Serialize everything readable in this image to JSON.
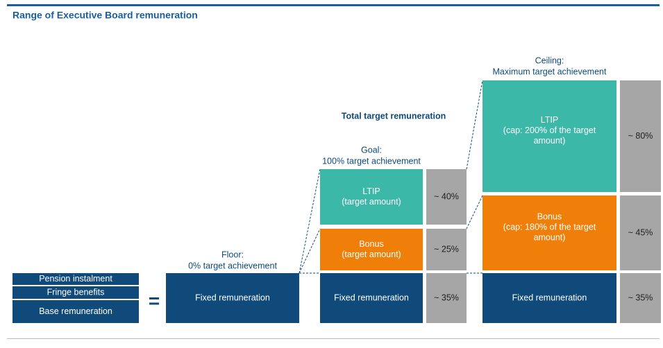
{
  "title": "Range of Executive Board remuneration",
  "components": [
    "Pension instalment",
    "Fringe benefits",
    "Base remuneration"
  ],
  "equals": "=",
  "total_target_label": "Total target remuneration",
  "scenarios": [
    {
      "heading": [
        "Floor:",
        "0% target achievement"
      ],
      "blocks": [
        {
          "label": [
            "Fixed remuneration"
          ]
        }
      ]
    },
    {
      "heading": [
        "Goal:",
        "100% target achievement"
      ],
      "blocks": [
        {
          "label": [
            "LTIP",
            "(target amount)"
          ],
          "share": "~ 40%"
        },
        {
          "label": [
            "Bonus",
            "(target amount)"
          ],
          "share": "~ 25%"
        },
        {
          "label": [
            "Fixed remuneration"
          ],
          "share": "~ 35%"
        }
      ]
    },
    {
      "heading": [
        "Ceiling:",
        "Maximum  target achievement"
      ],
      "blocks": [
        {
          "label": [
            "LTIP",
            "(cap: 200% of the target",
            "amount)"
          ],
          "share": "~ 80%"
        },
        {
          "label": [
            "Bonus",
            "(cap: 180% of the target",
            "amount)"
          ],
          "share": "~ 45%"
        },
        {
          "label": [
            "Fixed remuneration"
          ],
          "share": "~ 35%"
        }
      ]
    }
  ]
}
